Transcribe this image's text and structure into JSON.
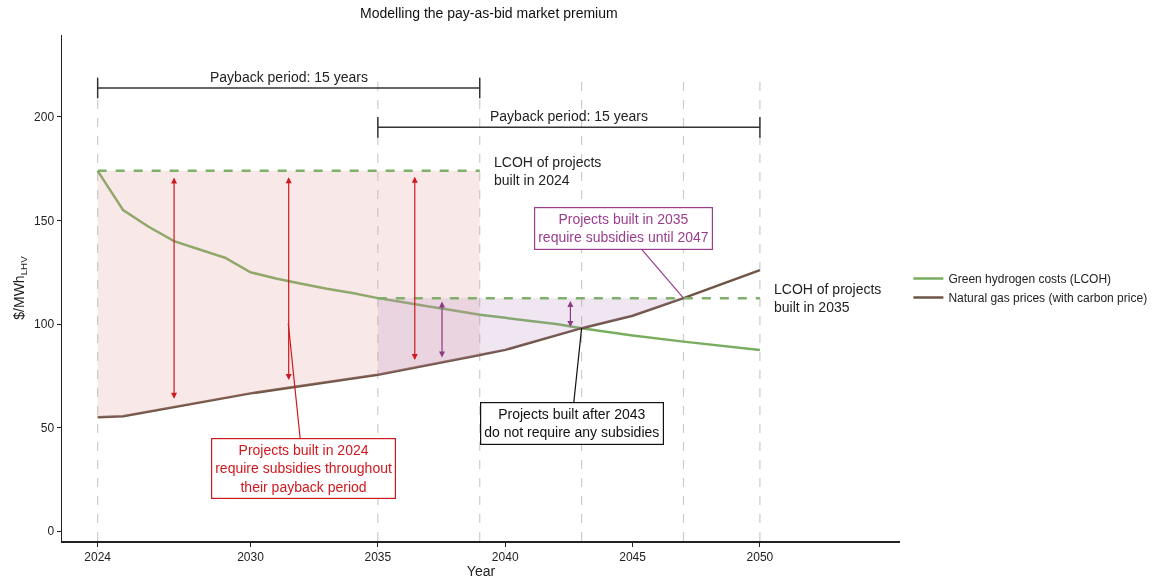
{
  "chart_data": {
    "type": "line",
    "title": "Modelling the pay-as-bid market premium",
    "xlabel": "Year",
    "ylabel": "$/MWh$_{LHV}$",
    "xlim": [
      2022.6,
      2055.5
    ],
    "ylim": [
      -4.8,
      239.6
    ],
    "xticks": [
      2024,
      2030,
      2035,
      2040,
      2045,
      2050
    ],
    "yticks": [
      0,
      50,
      100,
      150,
      200
    ],
    "grid": false,
    "legend": "right",
    "marker": "none",
    "line_style": "solid",
    "series": [
      {
        "name": "Green hydrogen costs (LCOH)",
        "color": "#79ad5f",
        "x": [
          2024,
          2025,
          2026,
          2027,
          2028,
          2029,
          2030,
          2031,
          2032,
          2033,
          2034,
          2035,
          2036,
          2037,
          2038,
          2039,
          2040,
          2041,
          2042,
          2043,
          2045,
          2047,
          2050
        ],
        "values": [
          174,
          155,
          147,
          140,
          136,
          132,
          125,
          122,
          119.5,
          117,
          115,
          112.5,
          110.5,
          108.5,
          106.5,
          104.5,
          103,
          101.5,
          100,
          98,
          94.5,
          91.5,
          87.5
        ]
      },
      {
        "name": "Natural gas prices (with carbon price)",
        "color": "#6e5445",
        "x": [
          2024,
          2025,
          2030,
          2035,
          2039,
          2040,
          2043,
          2045,
          2047,
          2050
        ],
        "values": [
          55,
          55.5,
          66.5,
          75.5,
          85,
          87.5,
          98,
          104,
          112.5,
          126
        ]
      },
      {
        "name": "LCOH of projects\nbuilt in 2024",
        "color": "#7fb069",
        "line_style": "dashed",
        "x": [
          2024,
          2025,
          2030,
          2035,
          2039
        ],
        "values": [
          174,
          174,
          174,
          174,
          174
        ],
        "upper": [
          174,
          174,
          174,
          174,
          174
        ],
        "lower": [
          55,
          55.5,
          66.5,
          75.5,
          85
        ]
      },
      {
        "name": "LCOH of projects\nbuilt in 2035",
        "color": "#7fb069",
        "line_style": "dashed",
        "x": [
          2035,
          2039,
          2040,
          2043,
          2045,
          2047,
          2050
        ],
        "values": [
          112.5,
          112.5,
          112.5,
          112.5,
          112.5,
          112.5,
          112.5
        ],
        "upper": [
          112.5,
          112.5,
          112.5,
          112.5,
          112.5,
          112.5,
          null
        ],
        "lower": [
          75.5,
          85,
          87.5,
          98,
          104,
          112.5,
          null
        ]
      },
      {
        "name": "Payback period: 15 years",
        "color": "#333333",
        "x": [
          2024,
          2039
        ],
        "values": [
          214,
          214
        ],
        "errors": [
          5,
          5
        ]
      },
      {
        "name": "Payback period: 15 years",
        "color": "#333333",
        "x": [
          2035,
          2050
        ],
        "values": [
          195,
          195
        ],
        "errors": [
          5,
          5
        ]
      }
    ],
    "ref_lines": [
      {
        "axis": "x",
        "value": 2024,
        "color": "#cccccc",
        "line_style": "dashed"
      },
      {
        "axis": "x",
        "value": 2035,
        "color": "#cccccc",
        "line_style": "dashed"
      },
      {
        "axis": "x",
        "value": 2039,
        "color": "#cccccc",
        "line_style": "dashed"
      },
      {
        "axis": "x",
        "value": 2043,
        "color": "#cccccc",
        "line_style": "dashed"
      },
      {
        "axis": "x",
        "value": 2047,
        "color": "#cccccc",
        "line_style": "dashed"
      },
      {
        "axis": "x",
        "value": 2050,
        "color": "#cccccc",
        "line_style": "dashed"
      }
    ],
    "annotations": [
      "Projects built in 2024\nrequire subsidies throughout\ntheir payback period",
      {
        "text": "Projects built in 2035\nrequire subsidies until 2047",
        "x": 2047,
        "y": 112.5
      },
      {
        "text": "Projects built after 2043\ndo not require any subsidies",
        "x": 2043,
        "y": 98
      }
    ]
  }
}
